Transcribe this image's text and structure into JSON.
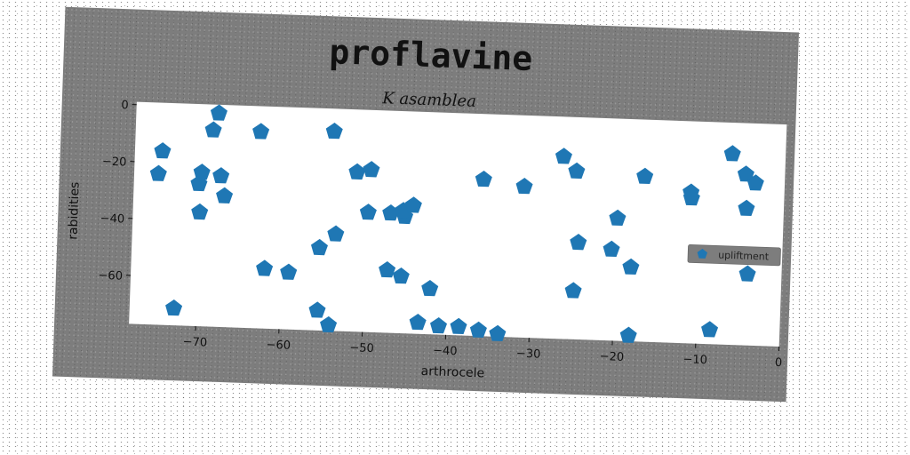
{
  "chart_data": {
    "type": "scatter",
    "title": "proflavine",
    "subtitle": "K asamblea",
    "xlabel": "arthrocele",
    "ylabel": "rabidities",
    "xlim": [
      -78,
      0
    ],
    "ylim": [
      -77,
      1
    ],
    "xticks": [
      -70,
      -60,
      -50,
      -40,
      -30,
      -20,
      -10,
      0
    ],
    "yticks": [
      0,
      -20,
      -40,
      -60
    ],
    "xtick_labels": [
      "−70",
      "−60",
      "−50",
      "−40",
      "−30",
      "−20",
      "−10",
      "0"
    ],
    "ytick_labels": [
      "0",
      "−20",
      "−40",
      "−60"
    ],
    "grid": false,
    "legend_position": "right",
    "marker": "pentagon",
    "colors": {
      "series": "#1f77b4",
      "figure_bg": "#7d7d7d",
      "plot_bg": "#ffffff",
      "legend_bg": "#7d7d7d"
    },
    "series": [
      {
        "name": "upliftment",
        "x": [
          -74.7,
          -75.1,
          -69.9,
          -70.2,
          -70.0,
          -68.7,
          -68.1,
          -67.6,
          -67.1,
          -63.0,
          -72.7,
          -62.0,
          -59.1,
          -55.5,
          -55.5,
          -54.2,
          -54.1,
          -53.6,
          -51.3,
          -49.6,
          -49.8,
          -47.1,
          -47.3,
          -45.6,
          -45.4,
          -45.6,
          -44.4,
          -43.4,
          -42.1,
          -40.9,
          -38.5,
          -36.1,
          -33.8,
          -36.1,
          -31.2,
          -26.6,
          -25.0,
          -24.9,
          -24.5,
          -20.5,
          -19.9,
          -18.1,
          -18.1,
          -16.8,
          -11.2,
          -11.1,
          -6.4,
          -4.7,
          -3.5,
          -4.5,
          -4.1,
          -8.4
        ],
        "y": [
          -16,
          -24,
          -23,
          -27,
          -37,
          -8,
          -2,
          -24,
          -31,
          -8,
          -71,
          -56,
          -57,
          -70,
          -48,
          -7,
          -75,
          -43,
          -21,
          -20,
          -35,
          -35,
          -55,
          -57,
          -36,
          -34,
          -32,
          -73,
          -61,
          -74,
          -74,
          -22,
          -76,
          -75,
          -24,
          -13,
          -18,
          -60,
          -43,
          -45,
          -34,
          -51,
          -75,
          -19,
          -24,
          -26,
          -10,
          -17,
          -20,
          -29,
          -52,
          -72
        ]
      }
    ]
  }
}
